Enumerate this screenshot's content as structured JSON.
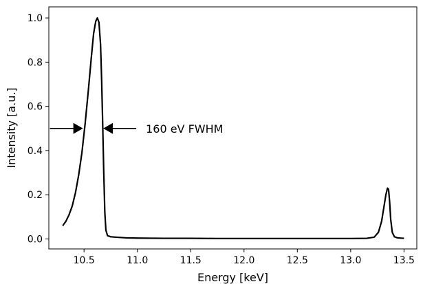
{
  "chart_data": {
    "type": "line",
    "title": "",
    "xlabel": "Energy [keV]",
    "ylabel": "Intensity [a.u.]",
    "xlim": [
      10.17,
      13.62
    ],
    "ylim": [
      -0.045,
      1.05
    ],
    "x_ticks": [
      10.5,
      11.0,
      11.5,
      12.0,
      12.5,
      13.0,
      13.5
    ],
    "x_tick_labels": [
      "10.5",
      "11.0",
      "11.5",
      "12.0",
      "12.5",
      "13.0",
      "13.5"
    ],
    "y_ticks": [
      0.0,
      0.2,
      0.4,
      0.6,
      0.8,
      1.0
    ],
    "y_tick_labels": [
      "0.0",
      "0.2",
      "0.4",
      "0.6",
      "0.8",
      "1.0"
    ],
    "grid": false,
    "line_color": "#000000",
    "series": [
      {
        "x": [
          10.3,
          10.33,
          10.36,
          10.39,
          10.42,
          10.45,
          10.48,
          10.51,
          10.54,
          10.57,
          10.59,
          10.61,
          10.625,
          10.64,
          10.655,
          10.665,
          10.675,
          10.685,
          10.695,
          10.705,
          10.72,
          10.75,
          10.8,
          10.9,
          11.0,
          11.25,
          11.5,
          11.75,
          12.0,
          12.25,
          12.5,
          12.75,
          13.0,
          13.15,
          13.22,
          13.26,
          13.29,
          13.31,
          13.33,
          13.345,
          13.355,
          13.365,
          13.375,
          13.39,
          13.41,
          13.44,
          13.5
        ],
        "y": [
          0.06,
          0.08,
          0.11,
          0.15,
          0.21,
          0.29,
          0.39,
          0.52,
          0.67,
          0.83,
          0.93,
          0.985,
          1.0,
          0.98,
          0.88,
          0.72,
          0.52,
          0.3,
          0.12,
          0.04,
          0.015,
          0.01,
          0.008,
          0.005,
          0.004,
          0.003,
          0.003,
          0.002,
          0.002,
          0.002,
          0.002,
          0.002,
          0.002,
          0.003,
          0.008,
          0.03,
          0.08,
          0.14,
          0.2,
          0.23,
          0.225,
          0.17,
          0.09,
          0.03,
          0.01,
          0.005,
          0.003
        ]
      }
    ],
    "annotation": {
      "text": "160 eV FWHM",
      "y": 0.5,
      "left_arrow_tip_x": 10.49,
      "right_arrow_tip_x": 10.68
    }
  }
}
